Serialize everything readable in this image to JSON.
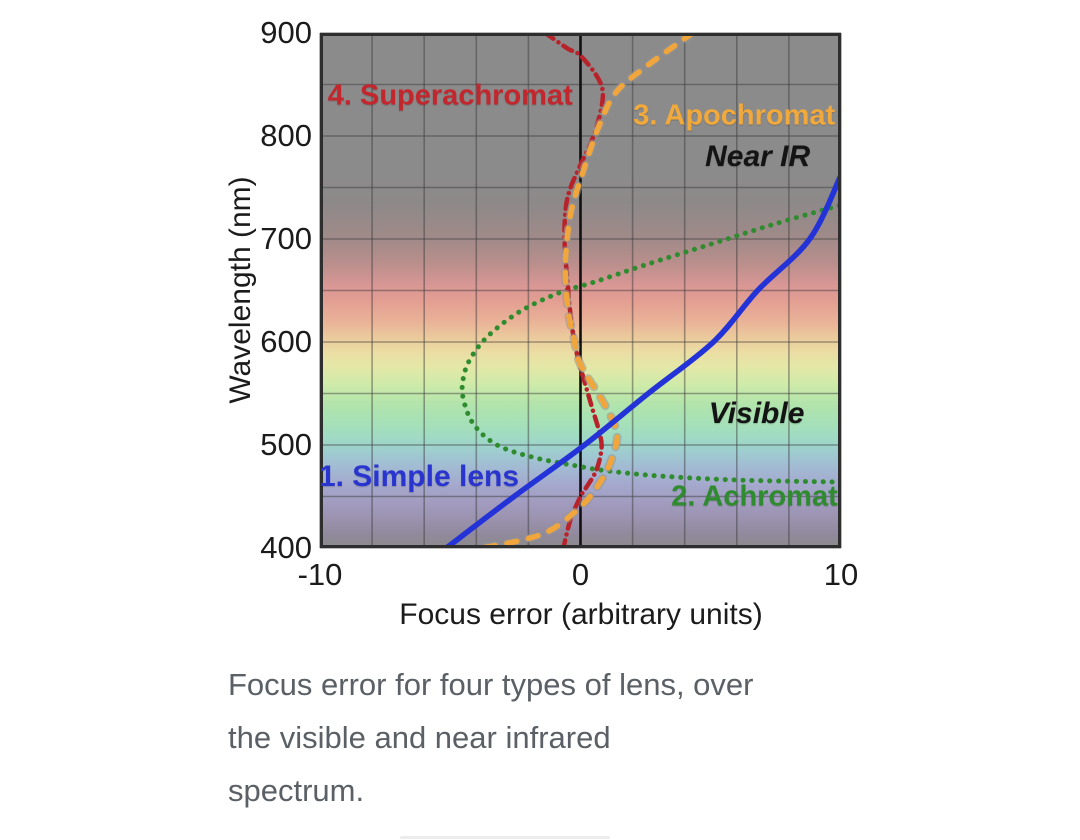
{
  "figure": {
    "caption": "Focus error for four types of lens, over the visible and near infrared spectrum.",
    "caption_lines": [
      "Focus error for four types of lens, over",
      "the visible and near infrared",
      "spectrum."
    ]
  },
  "chart_data": {
    "type": "line",
    "title": "",
    "xlabel": "Focus error (arbitrary units)",
    "ylabel": "Wavelength (nm)",
    "x_range": [
      -10,
      10
    ],
    "y_range": [
      400,
      900
    ],
    "x_ticks": [
      -10,
      0,
      10
    ],
    "y_ticks": [
      900,
      800,
      700,
      600,
      500,
      400
    ],
    "grid": {
      "x_step": 2,
      "y_step": 50,
      "line_color": "rgba(55,55,55,0.45)",
      "zero_line_color": "#111111",
      "border_color": "#2e2e2e"
    },
    "background": {
      "base_gray": "#8b8b8b",
      "spectrum_stops": [
        [
          0,
          "#8b8b8b"
        ],
        [
          28,
          "#8b8b8b"
        ],
        [
          33,
          "#8e8989"
        ],
        [
          40,
          "#a08a89"
        ],
        [
          45,
          "#bb8f8c"
        ],
        [
          49,
          "#d99795"
        ],
        [
          52,
          "#e39e92"
        ],
        [
          56,
          "#e9b297"
        ],
        [
          59,
          "#ebc99c"
        ],
        [
          62,
          "#ebdda3"
        ],
        [
          65,
          "#e3e8a7"
        ],
        [
          68.5,
          "#cdeaa9"
        ],
        [
          72,
          "#b2e4ab"
        ],
        [
          76,
          "#a5e0b8"
        ],
        [
          79,
          "#9fd9c6"
        ],
        [
          81.6,
          "#9ecbd0"
        ],
        [
          84.4,
          "#a2bad3"
        ],
        [
          87.6,
          "#a4a9cd"
        ],
        [
          91,
          "#a29cc0"
        ],
        [
          94.4,
          "#9b92ae"
        ],
        [
          97.6,
          "#90899b"
        ],
        [
          100,
          "#8b8b8b"
        ]
      ]
    },
    "series": [
      {
        "name": "2. Achromat",
        "color": "#2e8b2e",
        "style": "dotted",
        "width": 5,
        "points": [
          [
            10,
            464
          ],
          [
            6,
            466
          ],
          [
            3,
            470
          ],
          [
            1,
            475
          ],
          [
            0,
            479
          ],
          [
            -1.8,
            488
          ],
          [
            -3.2,
            500
          ],
          [
            -4.1,
            520
          ],
          [
            -4.5,
            545
          ],
          [
            -4.5,
            565
          ],
          [
            -4.2,
            585
          ],
          [
            -3.5,
            607
          ],
          [
            -2.3,
            630
          ],
          [
            -0.8,
            648
          ],
          [
            0.5,
            658
          ],
          [
            2.5,
            675
          ],
          [
            5,
            695
          ],
          [
            7.5,
            715
          ],
          [
            10,
            733
          ]
        ]
      },
      {
        "name": "4. Superachromat",
        "color": "#b8232b",
        "style": "dashdot",
        "width": 4.5,
        "points": [
          [
            -1.35,
            900
          ],
          [
            -0.5,
            885
          ],
          [
            0,
            878
          ],
          [
            0.7,
            855
          ],
          [
            0.85,
            835
          ],
          [
            0.5,
            800
          ],
          [
            0,
            772
          ],
          [
            -0.45,
            745
          ],
          [
            -0.6,
            720
          ],
          [
            -0.6,
            690
          ],
          [
            -0.5,
            660
          ],
          [
            -0.42,
            635
          ],
          [
            -0.3,
            610
          ],
          [
            -0.15,
            590
          ],
          [
            0,
            575
          ],
          [
            0.4,
            540
          ],
          [
            0.75,
            510
          ],
          [
            0.8,
            495
          ],
          [
            0.6,
            475
          ],
          [
            0.2,
            458
          ],
          [
            0,
            450
          ],
          [
            -0.35,
            430
          ],
          [
            -0.55,
            412
          ],
          [
            -0.65,
            400
          ]
        ]
      },
      {
        "name": "3. Apochromat",
        "color": "#f0a63c",
        "style": "dashed",
        "width": 5.5,
        "halo": "rgba(150,150,150,0.55)",
        "points": [
          [
            4.3,
            900
          ],
          [
            2.5,
            867
          ],
          [
            1.35,
            842
          ],
          [
            0.7,
            809
          ],
          [
            0.12,
            767
          ],
          [
            -0.35,
            728
          ],
          [
            -0.54,
            692
          ],
          [
            -0.58,
            663
          ],
          [
            -0.46,
            628
          ],
          [
            -0.27,
            605
          ],
          [
            0,
            578
          ],
          [
            0.8,
            545
          ],
          [
            1.3,
            520
          ],
          [
            1.4,
            505
          ],
          [
            1.1,
            480
          ],
          [
            0.6,
            458
          ],
          [
            0,
            440
          ],
          [
            -1.1,
            418
          ],
          [
            -2.2,
            408
          ],
          [
            -3.8,
            400
          ]
        ]
      },
      {
        "name": "1. Simple lens",
        "color": "#2433d8",
        "style": "solid",
        "width": 5.5,
        "points": [
          [
            -5.15,
            400
          ],
          [
            -2.55,
            450
          ],
          [
            0.05,
            498
          ],
          [
            2.6,
            550
          ],
          [
            5.1,
            600
          ],
          [
            6.8,
            650
          ],
          [
            8.8,
            700
          ],
          [
            10,
            762
          ]
        ]
      }
    ],
    "annotations": [
      {
        "text": "4. Superachromat",
        "x": -5.0,
        "y": 839,
        "color": "#c3272e",
        "bold": true,
        "italic": false,
        "size": 29
      },
      {
        "text": "3. Apochromat",
        "x": 5.9,
        "y": 819,
        "color": "#f2a93b",
        "bold": true,
        "italic": false,
        "size": 29
      },
      {
        "text": "Near IR",
        "x": 6.8,
        "y": 780,
        "color": "#141414",
        "bold": true,
        "italic": true,
        "size": 30
      },
      {
        "text": "Visible",
        "x": 6.76,
        "y": 530,
        "color": "#141414",
        "bold": true,
        "italic": true,
        "size": 30
      },
      {
        "text": "1. Simple lens",
        "x": -6.2,
        "y": 469,
        "color": "#2a35cf",
        "bold": true,
        "italic": false,
        "size": 30
      },
      {
        "text": "2. Achromat",
        "x": 6.68,
        "y": 450,
        "color": "#2e8b2e",
        "bold": true,
        "italic": false,
        "size": 29
      }
    ],
    "legend_position": "in-plot-annotations",
    "grid_on": true
  }
}
